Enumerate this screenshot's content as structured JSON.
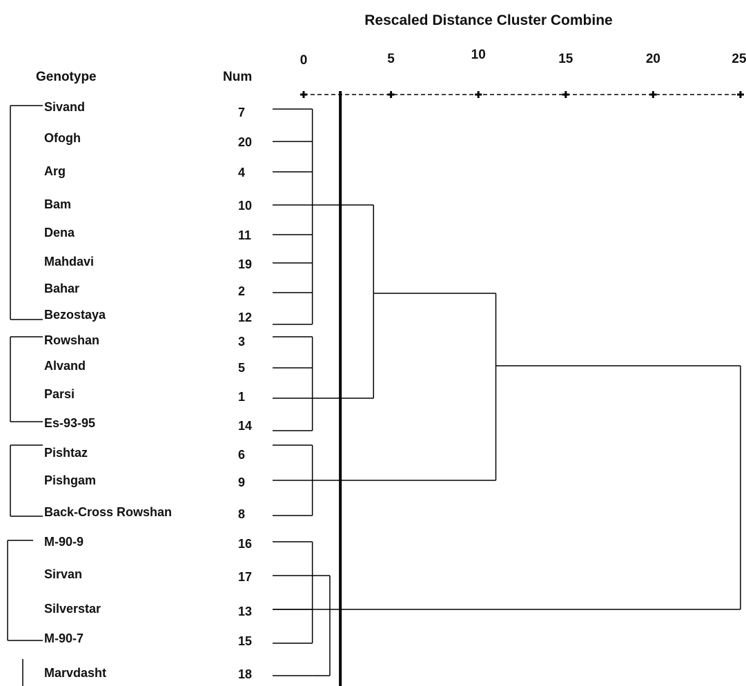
{
  "chart_data": {
    "type": "dendrogram",
    "title": "Rescaled Distance Cluster Combine",
    "column_headers": {
      "genotype": "Genotype",
      "num": "Num"
    },
    "axis": {
      "ticks": [
        "0",
        "5",
        "10",
        "15",
        "20",
        "25"
      ],
      "tick_values": [
        0,
        5,
        10,
        15,
        20,
        25
      ],
      "range": [
        0,
        25
      ]
    },
    "leaves": [
      {
        "genotype": "Sivand",
        "num": "7"
      },
      {
        "genotype": "Ofogh",
        "num": "20"
      },
      {
        "genotype": "Arg",
        "num": "4"
      },
      {
        "genotype": "Bam",
        "num": "10"
      },
      {
        "genotype": "Dena",
        "num": "11"
      },
      {
        "genotype": "Mahdavi",
        "num": "19"
      },
      {
        "genotype": "Bahar",
        "num": "2"
      },
      {
        "genotype": "Bezostaya",
        "num": "12"
      },
      {
        "genotype": "Rowshan",
        "num": "3"
      },
      {
        "genotype": "Alvand",
        "num": "5"
      },
      {
        "genotype": "Parsi",
        "num": "1"
      },
      {
        "genotype": "Es-93-95",
        "num": "14"
      },
      {
        "genotype": "Pishtaz",
        "num": "6"
      },
      {
        "genotype": "Pishgam",
        "num": "9"
      },
      {
        "genotype": "Back-Cross Rowshan",
        "num": "8"
      },
      {
        "genotype": "M-90-9",
        "num": "16"
      },
      {
        "genotype": "Sirvan",
        "num": "17"
      },
      {
        "genotype": "Silverstar",
        "num": "13"
      },
      {
        "genotype": "M-90-7",
        "num": "15"
      },
      {
        "genotype": "Marvdasht",
        "num": "18"
      }
    ],
    "clusters": [
      {
        "id": "A",
        "members": [
          0,
          1,
          2,
          3,
          4,
          5,
          6,
          7
        ],
        "height": 0.5
      },
      {
        "id": "B",
        "members": [
          8,
          9,
          10,
          11
        ],
        "height": 0.5
      },
      {
        "id": "C",
        "members": [
          12,
          13,
          14
        ],
        "height": 0.5
      },
      {
        "id": "D",
        "members": [
          15,
          16,
          17,
          18
        ],
        "height": 0.5
      },
      {
        "id": "AB",
        "children": [
          "A",
          "B"
        ],
        "height": 4
      },
      {
        "id": "DM",
        "children": [
          "D",
          "leaf:19"
        ],
        "height": 1.5
      },
      {
        "id": "ABC",
        "children": [
          "AB",
          "C"
        ],
        "height": 11
      },
      {
        "id": "ALL",
        "children": [
          "ABC",
          "DM"
        ],
        "height": 25
      }
    ],
    "cut_line": 2.1,
    "genotype_groups": [
      {
        "members": [
          0,
          1,
          2,
          3,
          4,
          5,
          6,
          7
        ]
      },
      {
        "members": [
          8,
          9,
          10,
          11
        ]
      },
      {
        "members": [
          12,
          13,
          14
        ]
      },
      {
        "members": [
          15,
          16,
          17,
          18
        ]
      },
      {
        "members": [
          19
        ]
      }
    ]
  }
}
